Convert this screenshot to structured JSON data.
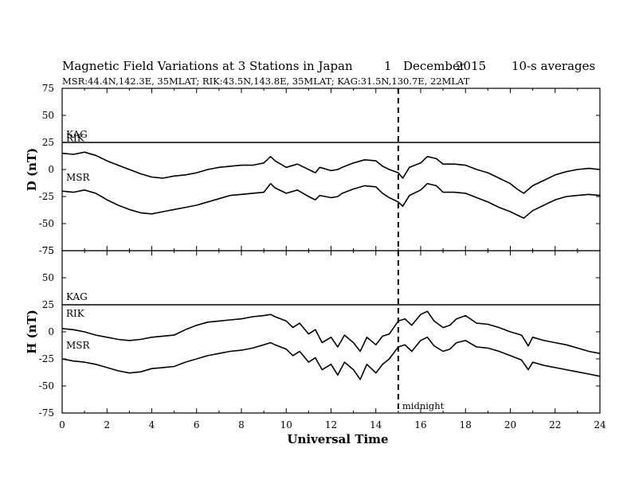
{
  "figure": {
    "title_parts": [
      "Magnetic Field Variations at 3 Stations in Japan",
      "1",
      "December",
      "2015",
      "10-s averages"
    ],
    "subtitle": "MSR:44.4N,142.3E, 35MLAT;  RIK:43.5N,143.8E, 35MLAT;  KAG:31.5N,130.7E, 22MLAT",
    "xlabel": "Universal Time",
    "annotation": "midnight"
  },
  "chart_data": [
    {
      "type": "line",
      "ylabel": "D (nT)",
      "ylim": [
        -75,
        75
      ],
      "yticks": [
        75,
        50,
        25,
        0,
        -25,
        -50,
        -75
      ],
      "xlim": [
        0,
        24
      ],
      "xticks": [
        0,
        2,
        4,
        6,
        8,
        10,
        12,
        14,
        16,
        18,
        20,
        22,
        24
      ],
      "vline_x": 15,
      "series": [
        {
          "name": "KAG",
          "x": [
            0,
            24
          ],
          "values": [
            25,
            25
          ]
        },
        {
          "name": "RIK",
          "x": [
            0,
            0.5,
            1,
            1.5,
            2,
            2.5,
            3,
            3.5,
            4,
            4.5,
            5,
            5.5,
            6,
            6.5,
            7,
            7.5,
            8,
            8.5,
            9,
            9.3,
            9.5,
            10,
            10.5,
            11,
            11.3,
            11.5,
            12,
            12.3,
            12.5,
            13,
            13.5,
            14,
            14.3,
            14.6,
            15,
            15.2,
            15.5,
            16,
            16.3,
            16.7,
            17,
            17.5,
            18,
            18.5,
            19,
            19.5,
            20,
            20.3,
            20.6,
            21,
            21.5,
            22,
            22.5,
            23,
            23.5,
            24
          ],
          "values": [
            15,
            14,
            16,
            13,
            8,
            4,
            0,
            -4,
            -7,
            -8,
            -6,
            -5,
            -3,
            0,
            2,
            3,
            4,
            4,
            6,
            12,
            8,
            2,
            5,
            0,
            -3,
            2,
            -1,
            0,
            2,
            6,
            9,
            8,
            3,
            0,
            -3,
            -8,
            2,
            6,
            12,
            10,
            5,
            5,
            4,
            0,
            -3,
            -8,
            -13,
            -18,
            -22,
            -15,
            -10,
            -5,
            -2,
            0,
            1,
            0
          ]
        },
        {
          "name": "MSR",
          "x": [
            0,
            0.5,
            1,
            1.5,
            2,
            2.5,
            3,
            3.5,
            4,
            4.5,
            5,
            5.5,
            6,
            6.5,
            7,
            7.5,
            8,
            8.5,
            9,
            9.3,
            9.5,
            10,
            10.5,
            11,
            11.3,
            11.5,
            12,
            12.3,
            12.5,
            13,
            13.5,
            14,
            14.3,
            14.6,
            15,
            15.2,
            15.5,
            16,
            16.3,
            16.7,
            17,
            17.5,
            18,
            18.5,
            19,
            19.5,
            20,
            20.3,
            20.6,
            21,
            21.5,
            22,
            22.5,
            23,
            23.5,
            24
          ],
          "values": [
            -20,
            -21,
            -19,
            -22,
            -28,
            -33,
            -37,
            -40,
            -41,
            -39,
            -37,
            -35,
            -33,
            -30,
            -27,
            -24,
            -23,
            -22,
            -21,
            -13,
            -17,
            -22,
            -19,
            -25,
            -28,
            -24,
            -26,
            -25,
            -22,
            -18,
            -15,
            -16,
            -22,
            -26,
            -30,
            -34,
            -24,
            -19,
            -13,
            -15,
            -21,
            -21,
            -22,
            -26,
            -30,
            -35,
            -39,
            -42,
            -45,
            -38,
            -33,
            -28,
            -25,
            -24,
            -23,
            -24
          ]
        }
      ]
    },
    {
      "type": "line",
      "ylabel": "H (nT)",
      "ylim": [
        -75,
        75
      ],
      "yticks": [
        75,
        50,
        25,
        0,
        -25,
        -50,
        -75
      ],
      "xlim": [
        0,
        24
      ],
      "xticks": [
        0,
        2,
        4,
        6,
        8,
        10,
        12,
        14,
        16,
        18,
        20,
        22,
        24
      ],
      "vline_x": 15,
      "series": [
        {
          "name": "KAG",
          "x": [
            0,
            24
          ],
          "values": [
            25,
            25
          ]
        },
        {
          "name": "RIK",
          "x": [
            0,
            0.5,
            1,
            1.5,
            2,
            2.5,
            3,
            3.5,
            4,
            4.5,
            5,
            5.5,
            6,
            6.5,
            7,
            7.5,
            8,
            8.5,
            9,
            9.3,
            9.5,
            10,
            10.3,
            10.6,
            11,
            11.3,
            11.6,
            12,
            12.3,
            12.6,
            13,
            13.3,
            13.6,
            14,
            14.3,
            14.6,
            15,
            15.3,
            15.6,
            16,
            16.3,
            16.6,
            17,
            17.3,
            17.6,
            18,
            18.5,
            19,
            19.5,
            20,
            20.5,
            20.8,
            21,
            21.5,
            22,
            22.5,
            23,
            23.5,
            24
          ],
          "values": [
            3,
            2,
            0,
            -3,
            -5,
            -7,
            -8,
            -7,
            -5,
            -4,
            -3,
            2,
            6,
            9,
            10,
            11,
            12,
            14,
            15,
            16,
            14,
            10,
            4,
            8,
            -2,
            2,
            -10,
            -5,
            -14,
            -3,
            -10,
            -18,
            -5,
            -12,
            -4,
            -2,
            10,
            12,
            6,
            16,
            19,
            10,
            4,
            6,
            12,
            15,
            8,
            7,
            4,
            0,
            -3,
            -13,
            -5,
            -8,
            -10,
            -12,
            -15,
            -18,
            -20
          ]
        },
        {
          "name": "MSR",
          "x": [
            0,
            0.5,
            1,
            1.5,
            2,
            2.5,
            3,
            3.5,
            4,
            4.5,
            5,
            5.5,
            6,
            6.5,
            7,
            7.5,
            8,
            8.5,
            9,
            9.3,
            9.5,
            10,
            10.3,
            10.6,
            11,
            11.3,
            11.6,
            12,
            12.3,
            12.6,
            13,
            13.3,
            13.6,
            14,
            14.3,
            14.6,
            15,
            15.3,
            15.6,
            16,
            16.3,
            16.6,
            17,
            17.3,
            17.6,
            18,
            18.5,
            19,
            19.5,
            20,
            20.5,
            20.8,
            21,
            21.5,
            22,
            22.5,
            23,
            23.5,
            24
          ],
          "values": [
            -25,
            -27,
            -28,
            -30,
            -33,
            -36,
            -38,
            -37,
            -34,
            -33,
            -32,
            -28,
            -25,
            -22,
            -20,
            -18,
            -17,
            -15,
            -12,
            -10,
            -12,
            -16,
            -22,
            -18,
            -28,
            -24,
            -35,
            -30,
            -40,
            -28,
            -35,
            -44,
            -30,
            -38,
            -30,
            -25,
            -14,
            -12,
            -18,
            -8,
            -5,
            -13,
            -18,
            -16,
            -10,
            -8,
            -14,
            -15,
            -18,
            -22,
            -26,
            -35,
            -28,
            -31,
            -33,
            -35,
            -37,
            -39,
            -41
          ]
        }
      ]
    }
  ]
}
